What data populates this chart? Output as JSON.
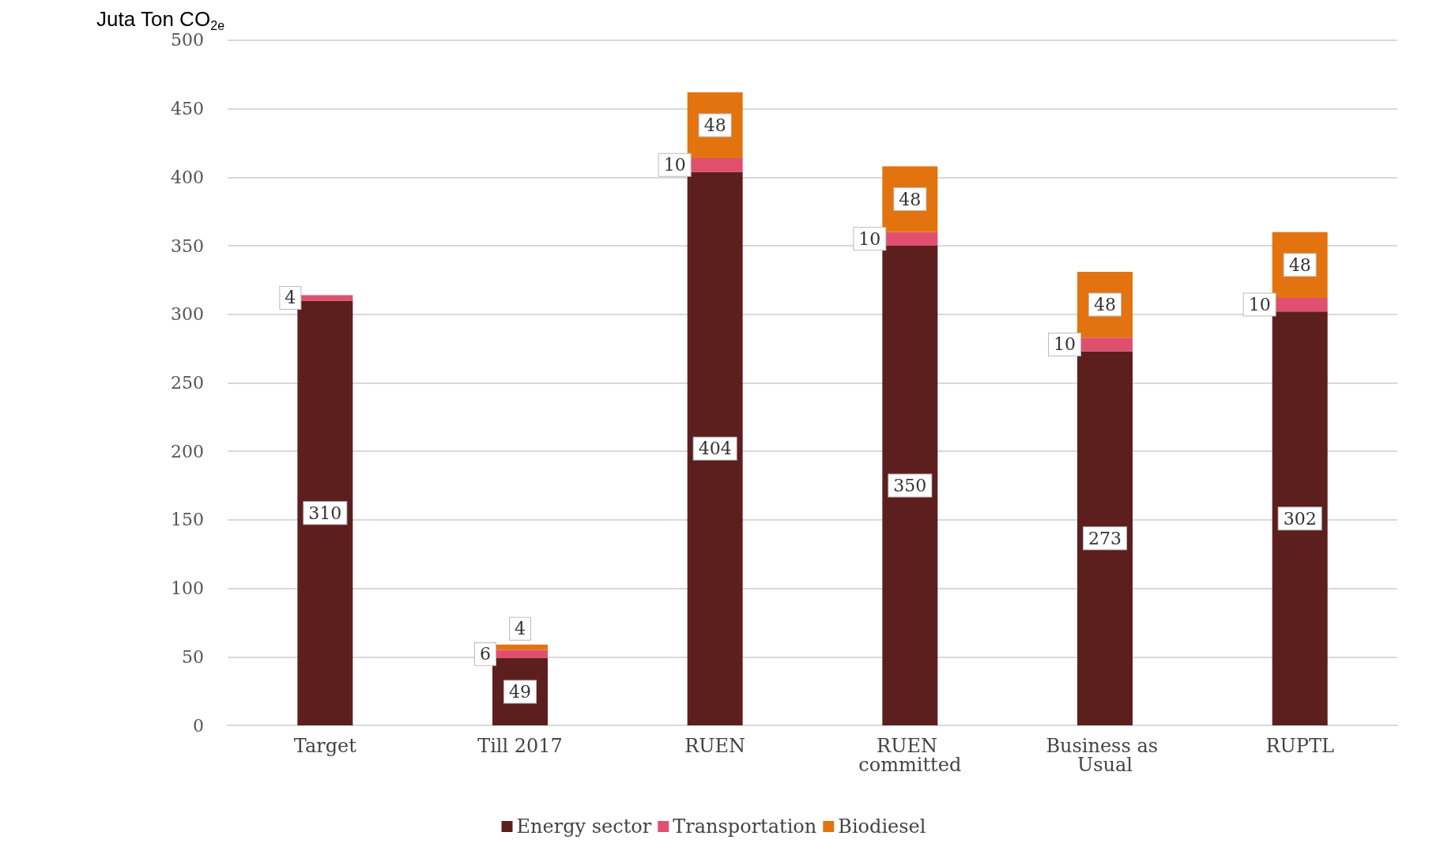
{
  "chart_data": {
    "type": "bar",
    "stacked": true,
    "ylabel": "Juta Ton CO$_{2e}$",
    "categories": [
      "Target",
      "Till 2017",
      "RUEN",
      "RUEN committed",
      "Business as Usual",
      "RUPTL"
    ],
    "series": [
      {
        "name": "Energy sector",
        "color": "#5c1f1e",
        "values": [
          310,
          49,
          404,
          350,
          273,
          302
        ]
      },
      {
        "name": "Transportation",
        "color": "#e0506e",
        "values": [
          4,
          6,
          10,
          10,
          10,
          10
        ]
      },
      {
        "name": "Biodiesel",
        "color": "#e3730f",
        "values": [
          null,
          4,
          48,
          48,
          48,
          48
        ]
      }
    ],
    "ylim": [
      0,
      500
    ],
    "yticks": [
      0,
      50,
      100,
      150,
      200,
      250,
      300,
      350,
      400,
      450,
      500
    ],
    "grid": "y",
    "legend": "bottom",
    "data_labels": true
  }
}
